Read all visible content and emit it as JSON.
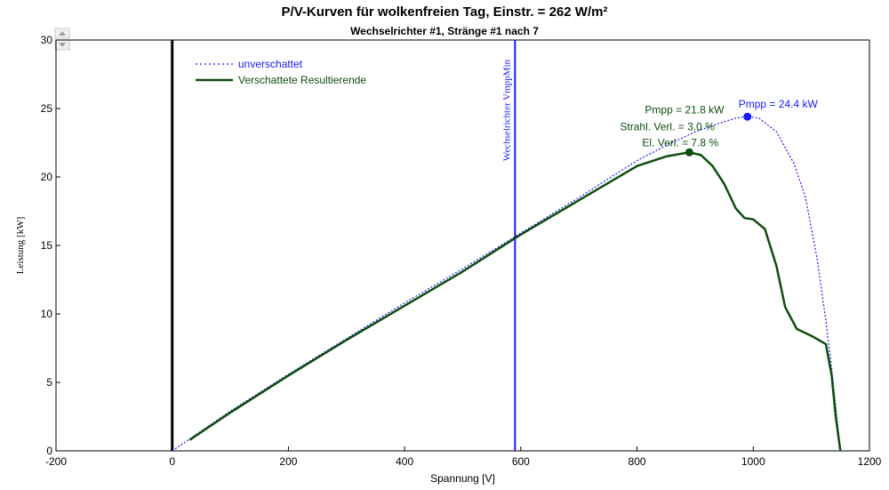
{
  "chart_data": {
    "type": "line",
    "title": "P/V-Kurven für wolkenfreien Tag, Einstr. = 262 W/m²",
    "subtitle": "Wechselrichter  #1, Stränge #1 nach 7",
    "xlabel": "Spannung [V]",
    "ylabel": "Leistung [kW]",
    "xlim": [
      -200,
      1200
    ],
    "ylim": [
      0,
      30
    ],
    "xticks": [
      -200,
      0,
      200,
      400,
      600,
      800,
      1000,
      1200
    ],
    "yticks": [
      0,
      5,
      10,
      15,
      20,
      25,
      30
    ],
    "grid": false,
    "legend_position": "top-left",
    "series": [
      {
        "name": "unverschattet",
        "style": "dotted",
        "color": "#1a1aff",
        "x": [
          0,
          100,
          200,
          300,
          400,
          500,
          600,
          700,
          800,
          850,
          900,
          940,
          970,
          990,
          1010,
          1040,
          1070,
          1090,
          1110,
          1125,
          1135,
          1145,
          1150
        ],
        "y": [
          0,
          2.9,
          5.6,
          8.2,
          10.8,
          13.3,
          15.9,
          18.5,
          21.2,
          22.3,
          23.3,
          23.9,
          24.3,
          24.4,
          24.3,
          23.3,
          21.0,
          18.5,
          14.0,
          9.5,
          6.0,
          2.0,
          0
        ]
      },
      {
        "name": "Verschattete Resultierende",
        "style": "solid",
        "color": "#0d4d0d",
        "x": [
          30,
          100,
          200,
          300,
          400,
          500,
          600,
          700,
          800,
          850,
          890,
          910,
          930,
          950,
          970,
          985,
          1000,
          1020,
          1040,
          1055,
          1075,
          1100,
          1125,
          1135,
          1142,
          1150
        ],
        "y": [
          0.8,
          2.8,
          5.5,
          8.1,
          10.6,
          13.1,
          15.8,
          18.3,
          20.8,
          21.5,
          21.8,
          21.6,
          20.8,
          19.5,
          17.7,
          17.0,
          16.9,
          16.2,
          13.5,
          10.5,
          8.9,
          8.4,
          7.8,
          5.5,
          2.5,
          0
        ]
      }
    ],
    "markers": [
      {
        "x": 990,
        "y": 24.4,
        "color": "#1a1aff",
        "label": "Pmpp = 24.4 kW"
      },
      {
        "x": 890,
        "y": 21.8,
        "color": "#0d4d0d",
        "label": "Pmpp = 21.8 kW"
      }
    ],
    "annotations": [
      {
        "text": "Strahl. Verl. = 3.0 %",
        "color": "#0d4d0d"
      },
      {
        "text": "El. Verl. = 7.8 %",
        "color": "#0d4d0d"
      }
    ],
    "vertical_lines": [
      {
        "x": 0,
        "color": "#000000",
        "label": ""
      },
      {
        "x": 590,
        "color": "#1a1aff",
        "label": "Wechselrichter VmppMin"
      }
    ]
  }
}
